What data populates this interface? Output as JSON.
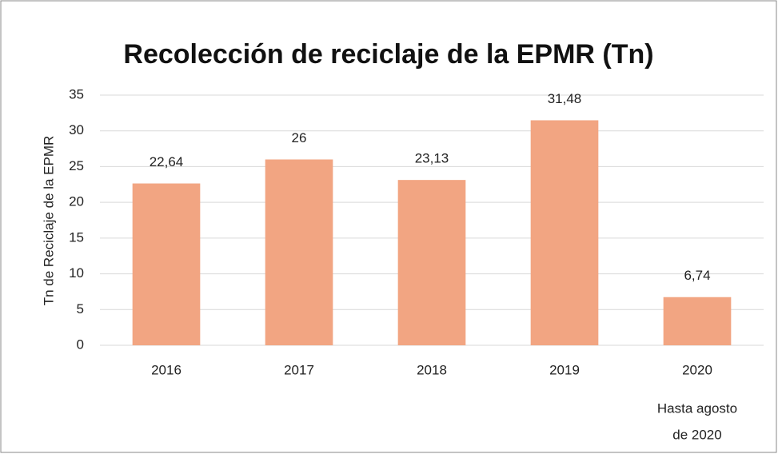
{
  "chart_data": {
    "type": "bar",
    "title": "Recolección de reciclaje de la EPMR (Tn)",
    "y_label": "Tn de Reciclaje de la EPMR",
    "categories": [
      "2016",
      "2017",
      "2018",
      "2019",
      "2020"
    ],
    "values": [
      22.64,
      26,
      23.13,
      31.48,
      6.74
    ],
    "value_labels": [
      "22,64",
      "26",
      "23,13",
      "31,48",
      "6,74"
    ],
    "annotation": [
      "Hasta agosto",
      "de 2020"
    ],
    "color": "#f2a582",
    "ylim": [
      0,
      35
    ],
    "yticks": [
      0,
      5,
      10,
      15,
      20,
      25,
      30,
      35
    ],
    "grid": true
  }
}
